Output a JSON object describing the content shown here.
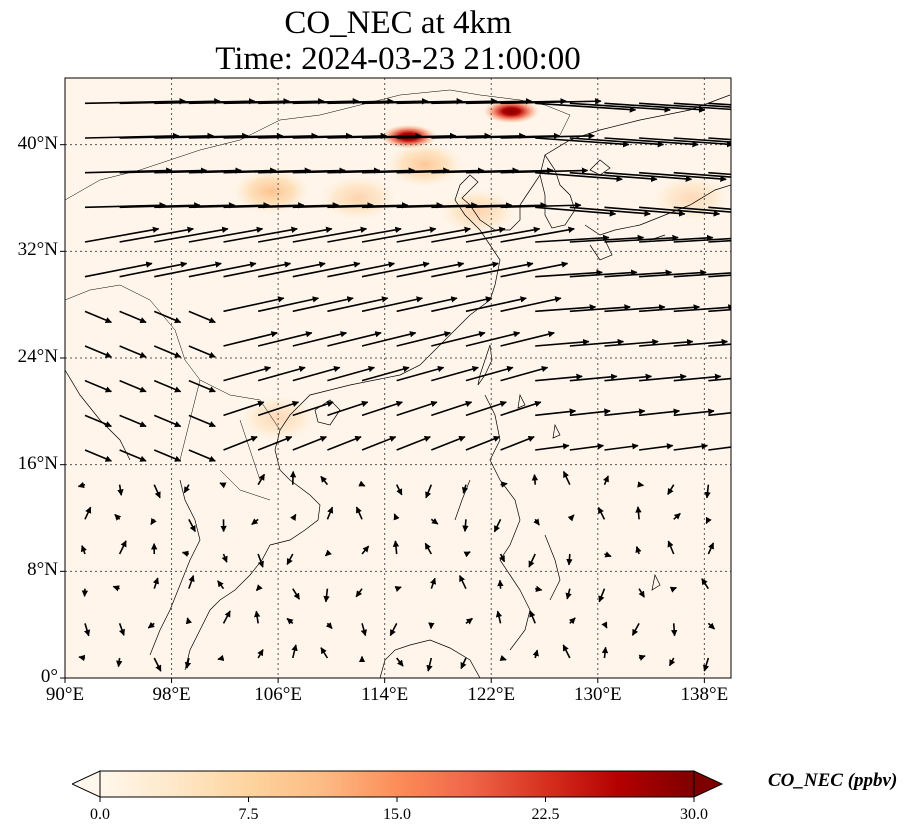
{
  "title": {
    "line1": "CO_NEC at 4km",
    "line2": "Time: 2024-03-23 21:00:00"
  },
  "chart_data": {
    "type": "heatmap",
    "variable": "CO_NEC",
    "x_extent": [
      90,
      140
    ],
    "y_extent": [
      0,
      45
    ],
    "x_ticks": [
      90,
      98,
      106,
      114,
      122,
      130,
      138
    ],
    "x_tick_labels": [
      "90°E",
      "98°E",
      "106°E",
      "114°E",
      "122°E",
      "130°E",
      "138°E"
    ],
    "y_ticks": [
      0,
      8,
      16,
      24,
      32,
      40
    ],
    "y_tick_labels": [
      "0°",
      "8°N",
      "16°N",
      "24°N",
      "32°N",
      "40°N"
    ],
    "grid": true,
    "colormap": "OrRd",
    "colors": [
      "#fff7ec",
      "#fee8c8",
      "#fdd49e",
      "#fdbb84",
      "#fc8d59",
      "#ef6548",
      "#d7301f",
      "#b30000",
      "#7f0000"
    ],
    "vmin": 0,
    "vmax": 30,
    "hotspots": [
      {
        "lon": 115.8,
        "lat": 40.6,
        "peak": 30
      },
      {
        "lon": 123.5,
        "lat": 42.5,
        "peak": 26
      },
      {
        "lon": 105.5,
        "lat": 36.5,
        "peak": 9
      },
      {
        "lon": 117,
        "lat": 38.5,
        "peak": 8
      },
      {
        "lon": 112,
        "lat": 36,
        "peak": 6
      },
      {
        "lon": 121,
        "lat": 35,
        "peak": 6
      },
      {
        "lon": 137,
        "lat": 36,
        "peak": 5
      },
      {
        "lon": 106,
        "lat": 19.5,
        "peak": 5
      }
    ],
    "wind_vectors": "westerly flow (SW-WSW) over south and central China and East China Sea; weak variable winds south of 16°N"
  },
  "colorbar": {
    "ticks": [
      "0.0",
      "7.5",
      "15.0",
      "22.5",
      "30.0"
    ],
    "label": "CO_NEC (ppbv)",
    "extend": "both"
  }
}
